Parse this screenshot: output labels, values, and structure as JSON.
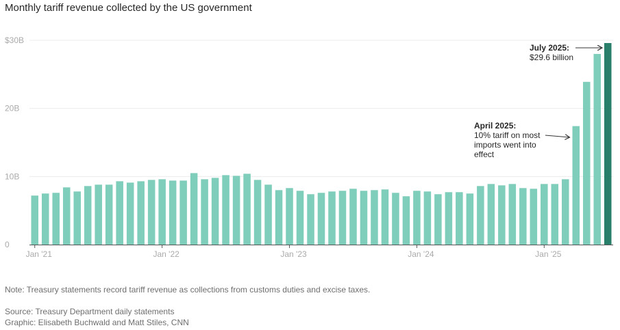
{
  "chart_data": {
    "type": "bar",
    "title": "Monthly tariff revenue collected by the US government",
    "xlabel": "",
    "ylabel": "",
    "ylim": [
      0,
      30
    ],
    "grid": true,
    "y_ticks": [
      {
        "value": 0,
        "label": "0"
      },
      {
        "value": 10,
        "label": "10B"
      },
      {
        "value": 20,
        "label": "20B"
      },
      {
        "value": 30,
        "label": "$30B"
      }
    ],
    "x_ticks": [
      {
        "index": 0,
        "label": "Jan '21"
      },
      {
        "index": 12,
        "label": "Jan '22"
      },
      {
        "index": 24,
        "label": "Jan '23"
      },
      {
        "index": 36,
        "label": "Jan '24"
      },
      {
        "index": 48,
        "label": "Jan '25"
      }
    ],
    "categories": [
      "2021-01",
      "2021-02",
      "2021-03",
      "2021-04",
      "2021-05",
      "2021-06",
      "2021-07",
      "2021-08",
      "2021-09",
      "2021-10",
      "2021-11",
      "2021-12",
      "2022-01",
      "2022-02",
      "2022-03",
      "2022-04",
      "2022-05",
      "2022-06",
      "2022-07",
      "2022-08",
      "2022-09",
      "2022-10",
      "2022-11",
      "2022-12",
      "2023-01",
      "2023-02",
      "2023-03",
      "2023-04",
      "2023-05",
      "2023-06",
      "2023-07",
      "2023-08",
      "2023-09",
      "2023-10",
      "2023-11",
      "2023-12",
      "2024-01",
      "2024-02",
      "2024-03",
      "2024-04",
      "2024-05",
      "2024-06",
      "2024-07",
      "2024-08",
      "2024-09",
      "2024-10",
      "2024-11",
      "2024-12",
      "2025-01",
      "2025-02",
      "2025-03",
      "2025-04",
      "2025-05",
      "2025-06",
      "2025-07"
    ],
    "values": [
      7.2,
      7.5,
      7.6,
      8.4,
      7.8,
      8.6,
      8.8,
      8.8,
      9.3,
      9.1,
      9.3,
      9.5,
      9.6,
      9.4,
      9.4,
      10.5,
      9.6,
      9.8,
      10.2,
      10.1,
      10.4,
      9.5,
      8.8,
      8.0,
      8.3,
      7.9,
      7.4,
      7.6,
      7.8,
      7.9,
      8.2,
      7.9,
      8.0,
      8.1,
      7.6,
      7.1,
      7.9,
      7.8,
      7.4,
      7.7,
      7.7,
      7.5,
      8.6,
      8.9,
      8.7,
      8.9,
      8.3,
      8.2,
      8.9,
      8.9,
      9.6,
      17.4,
      23.9,
      28.0,
      29.6
    ],
    "bar_color": "#7fcdbb",
    "highlight_color": "#2a7f6a",
    "highlight_index": 54,
    "annotations": [
      {
        "bold": "July 2025:",
        "text": "$29.6 billion",
        "target_index": 54
      },
      {
        "bold": "April 2025:",
        "text": "10% tariff on most imports went into effect",
        "target_index": 51
      }
    ]
  },
  "footer": {
    "note": "Note: Treasury statements record tariff revenue as collections from customs duties and excise taxes.",
    "source": "Source: Treasury Department daily statements",
    "graphic": "Graphic: Elisabeth Buchwald and Matt Stiles, CNN"
  }
}
